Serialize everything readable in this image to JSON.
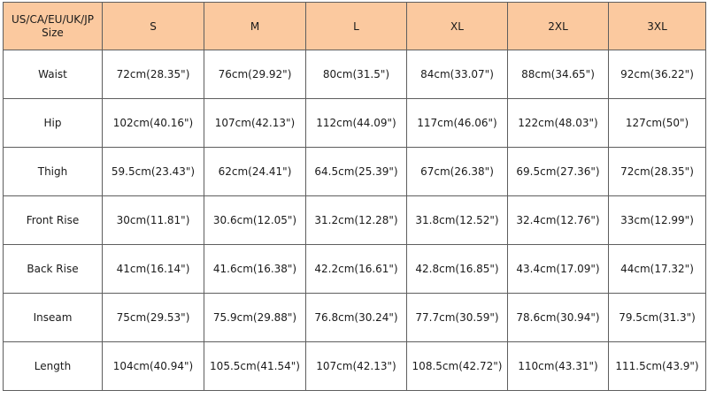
{
  "table": {
    "corner_line1": "US/CA/EU/UK/JP",
    "corner_line2": "Size",
    "sizes": [
      "S",
      "M",
      "L",
      "XL",
      "2XL",
      "3XL"
    ],
    "rows": [
      {
        "label": "Waist",
        "values": [
          "72cm(28.35\")",
          "76cm(29.92\")",
          "80cm(31.5\")",
          "84cm(33.07\")",
          "88cm(34.65\")",
          "92cm(36.22\")"
        ]
      },
      {
        "label": "Hip",
        "values": [
          "102cm(40.16\")",
          "107cm(42.13\")",
          "112cm(44.09\")",
          "117cm(46.06\")",
          "122cm(48.03\")",
          "127cm(50\")"
        ]
      },
      {
        "label": "Thigh",
        "values": [
          "59.5cm(23.43\")",
          "62cm(24.41\")",
          "64.5cm(25.39\")",
          "67cm(26.38\")",
          "69.5cm(27.36\")",
          "72cm(28.35\")"
        ]
      },
      {
        "label": "Front Rise",
        "values": [
          "30cm(11.81\")",
          "30.6cm(12.05\")",
          "31.2cm(12.28\")",
          "31.8cm(12.52\")",
          "32.4cm(12.76\")",
          "33cm(12.99\")"
        ]
      },
      {
        "label": "Back Rise",
        "values": [
          "41cm(16.14\")",
          "41.6cm(16.38\")",
          "42.2cm(16.61\")",
          "42.8cm(16.85\")",
          "43.4cm(17.09\")",
          "44cm(17.32\")"
        ]
      },
      {
        "label": "Inseam",
        "values": [
          "75cm(29.53\")",
          "75.9cm(29.88\")",
          "76.8cm(30.24\")",
          "77.7cm(30.59\")",
          "78.6cm(30.94\")",
          "79.5cm(31.3\")"
        ]
      },
      {
        "label": "Length",
        "values": [
          "104cm(40.94\")",
          "105.5cm(41.54\")",
          "107cm(42.13\")",
          "108.5cm(42.72\")",
          "110cm(43.31\")",
          "111.5cm(43.9\")"
        ]
      }
    ]
  }
}
